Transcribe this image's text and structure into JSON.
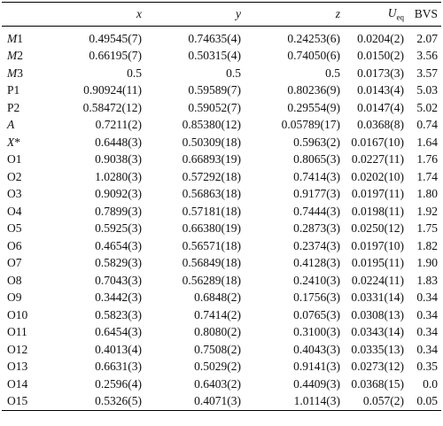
{
  "table": {
    "header": [
      {
        "text": "x"
      },
      {
        "text": "y"
      },
      {
        "text": "z"
      },
      {
        "text": "U",
        "sub": "eq"
      },
      {
        "text": "BVS"
      }
    ],
    "rows": [
      [
        "M1",
        "0.49545(7)",
        "0.74635(4)",
        "0.24253(6)",
        "0.0204(2)",
        "2.07"
      ],
      [
        "M2",
        "0.66195(7)",
        "0.50315(4)",
        "0.74050(6)",
        "0.0150(2)",
        "3.56"
      ],
      [
        "M3",
        "0.5",
        "0.5",
        "0.5",
        "0.0173(3)",
        "3.57"
      ],
      [
        "P1",
        "0.90924(11)",
        "0.59589(7)",
        "0.80236(9)",
        "0.0143(4)",
        "5.03"
      ],
      [
        "P2",
        "0.58472(12)",
        "0.59052(7)",
        "0.29554(9)",
        "0.0147(4)",
        "5.02"
      ],
      [
        "A",
        "0.7211(2)",
        "0.85380(12)",
        "0.05789(17)",
        "0.0368(8)",
        "0.74"
      ],
      [
        "X*",
        "0.6448(3)",
        "0.50309(18)",
        "0.5963(2)",
        "0.0167(10)",
        "1.64"
      ],
      [
        "O1",
        "0.9038(3)",
        "0.66893(19)",
        "0.8065(3)",
        "0.0227(11)",
        "1.76"
      ],
      [
        "O2",
        "1.0280(3)",
        "0.57292(18)",
        "0.7414(3)",
        "0.0202(10)",
        "1.74"
      ],
      [
        "O3",
        "0.9092(3)",
        "0.56863(18)",
        "0.9177(3)",
        "0.0197(11)",
        "1.80"
      ],
      [
        "O4",
        "0.7899(3)",
        "0.57181(18)",
        "0.7444(3)",
        "0.0198(11)",
        "1.92"
      ],
      [
        "O5",
        "0.5925(3)",
        "0.66380(19)",
        "0.2873(3)",
        "0.0250(12)",
        "1.75"
      ],
      [
        "O6",
        "0.4654(3)",
        "0.56571(18)",
        "0.2374(3)",
        "0.0197(10)",
        "1.82"
      ],
      [
        "O7",
        "0.5829(3)",
        "0.56849(18)",
        "0.4128(3)",
        "0.0195(11)",
        "1.90"
      ],
      [
        "O8",
        "0.7043(3)",
        "0.56289(18)",
        "0.2410(3)",
        "0.0224(11)",
        "1.83"
      ],
      [
        "O9",
        "0.3442(3)",
        "0.6848(2)",
        "0.1756(3)",
        "0.0331(14)",
        "0.34"
      ],
      [
        "O10",
        "0.5823(3)",
        "0.7414(2)",
        "0.0765(3)",
        "0.0308(13)",
        "0.34"
      ],
      [
        "O11",
        "0.6454(3)",
        "0.8080(2)",
        "0.3100(3)",
        "0.0343(14)",
        "0.34"
      ],
      [
        "O12",
        "0.4013(4)",
        "0.7508(2)",
        "0.4043(3)",
        "0.0335(13)",
        "0.34"
      ],
      [
        "O13",
        "0.6631(3)",
        "0.5029(2)",
        "0.9141(3)",
        "0.0273(12)",
        "0.35"
      ],
      [
        "O14",
        "0.2596(4)",
        "0.6403(2)",
        "0.4409(3)",
        "0.0368(15)",
        "0.0"
      ],
      [
        "O15",
        "0.5326(5)",
        "0.4071(3)",
        "1.0114(3)",
        "0.057(2)",
        "0.05"
      ]
    ]
  }
}
